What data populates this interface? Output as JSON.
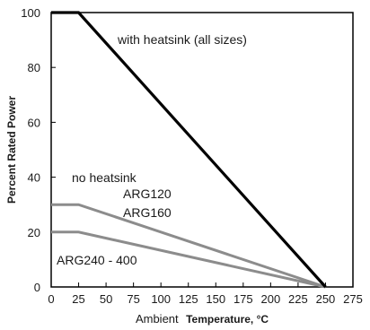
{
  "chart_data": {
    "type": "line",
    "xlabel_plain": "Ambient",
    "xlabel_bold": "Temperature, °C",
    "ylabel": "Percent Rated Power",
    "xlim": [
      0,
      275
    ],
    "ylim": [
      0,
      100
    ],
    "xticks": [
      0,
      25,
      50,
      75,
      100,
      125,
      150,
      175,
      200,
      225,
      250,
      275
    ],
    "yticks": [
      0,
      20,
      40,
      60,
      80,
      100
    ],
    "grid": false,
    "series": [
      {
        "points": [
          [
            0,
            100
          ],
          [
            25,
            100
          ],
          [
            250,
            0
          ]
        ],
        "color": "#000000"
      },
      {
        "points": [
          [
            0,
            30
          ],
          [
            25,
            30
          ],
          [
            250,
            0
          ]
        ],
        "color": "#8c8c8c"
      },
      {
        "points": [
          [
            0,
            20
          ],
          [
            25,
            20
          ],
          [
            250,
            0
          ]
        ],
        "color": "#8c8c8c"
      }
    ],
    "annotations": {
      "heatsink": "with heatsink (all sizes)",
      "no_heatsink": "no heatsink",
      "arg120": "ARG120",
      "arg160": "ARG160",
      "arg240": "ARG240 - 400"
    }
  }
}
